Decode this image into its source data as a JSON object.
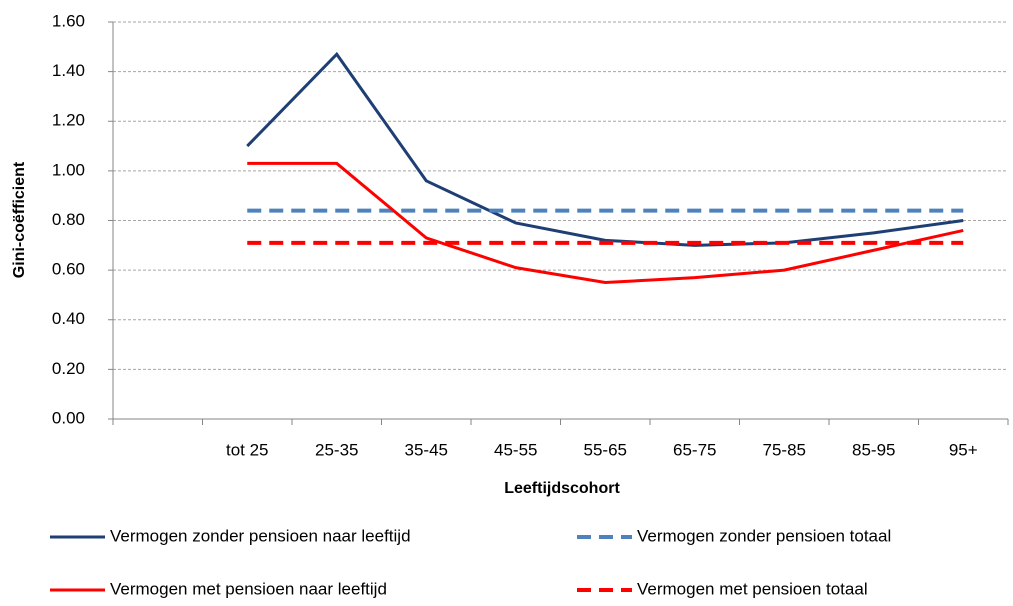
{
  "chart_data": {
    "type": "line",
    "x_label": "Leeftijdscohort",
    "y_label": "Gini-coëfficient",
    "categories": [
      null,
      "tot 25",
      "25-35",
      "35-45",
      "45-55",
      "55-65",
      "65-75",
      "75-85",
      "85-95",
      "95+"
    ],
    "series": [
      {
        "name": "Vermogen zonder pensioen naar leeftijd",
        "color": "#1f3f74",
        "dashed": false,
        "values": [
          null,
          1.1,
          1.47,
          0.96,
          0.79,
          0.72,
          0.7,
          0.71,
          0.75,
          0.8
        ]
      },
      {
        "name": "Vermogen zonder pensioen totaal",
        "color": "#4f81bd",
        "dashed": true,
        "values": [
          null,
          0.84,
          0.84,
          0.84,
          0.84,
          0.84,
          0.84,
          0.84,
          0.84,
          0.84
        ]
      },
      {
        "name": "Vermogen met pensioen naar leeftijd",
        "color": "#ff0000",
        "dashed": false,
        "values": [
          null,
          1.03,
          1.03,
          0.73,
          0.61,
          0.55,
          0.57,
          0.6,
          0.68,
          0.76
        ]
      },
      {
        "name": "Vermogen met pensioen totaal",
        "color": "#ff0000",
        "dashed": true,
        "values": [
          null,
          0.71,
          0.71,
          0.71,
          0.71,
          0.71,
          0.71,
          0.71,
          0.71,
          0.71
        ]
      }
    ],
    "ylim": [
      0,
      1.6
    ],
    "yticks": [
      {
        "value": 0,
        "label": "0.00"
      },
      {
        "value": 0.2,
        "label": "0.20"
      },
      {
        "value": 0.4,
        "label": "0.40"
      },
      {
        "value": 0.6,
        "label": "0.60"
      },
      {
        "value": 0.8,
        "label": "0.80"
      },
      {
        "value": 1.0,
        "label": "1.00"
      },
      {
        "value": 1.2,
        "label": "1.20"
      },
      {
        "value": 1.4,
        "label": "1.40"
      },
      {
        "value": 1.6,
        "label": "1.60"
      }
    ],
    "grid": true,
    "legend": "bottom"
  }
}
